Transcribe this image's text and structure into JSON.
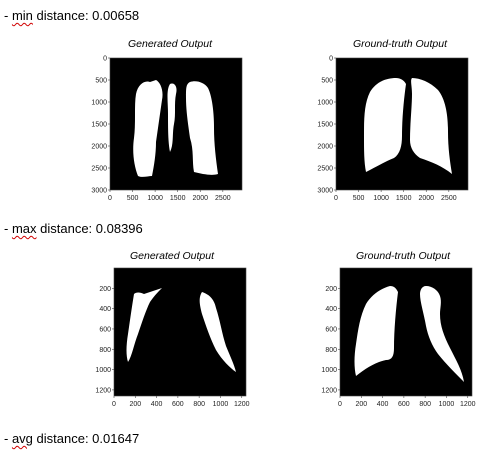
{
  "lines": {
    "min": {
      "prefix": "- ",
      "word": "min",
      "rest": " distance: 0.00658"
    },
    "max": {
      "prefix": "- ",
      "word": "max",
      "rest": " distance: 0.08396"
    },
    "avg": {
      "prefix": "- ",
      "word": "avg",
      "rest": " distance: 0.01647"
    }
  },
  "panels": [
    {
      "title": "Generated Output",
      "yticks": [
        "0",
        "500",
        "1000",
        "1500",
        "2000",
        "2500",
        "3000"
      ],
      "xticks": [
        "0",
        "500",
        "1000",
        "1500",
        "2000",
        "2500"
      ]
    },
    {
      "title": "Ground-truth Output",
      "yticks": [
        "0",
        "500",
        "1000",
        "1500",
        "2000",
        "2500",
        "3000"
      ],
      "xticks": [
        "0",
        "500",
        "1000",
        "1500",
        "2000",
        "2500"
      ]
    },
    {
      "title": "Generated Output",
      "yticks": [
        "200",
        "400",
        "600",
        "800",
        "1000",
        "1200"
      ],
      "xticks": [
        "0",
        "200",
        "400",
        "600",
        "800",
        "1000",
        "1200"
      ]
    },
    {
      "title": "Ground-truth Output",
      "yticks": [
        "200",
        "400",
        "600",
        "800",
        "1000",
        "1200"
      ],
      "xticks": [
        "0",
        "200",
        "400",
        "600",
        "800",
        "1000",
        "1200"
      ]
    }
  ],
  "colors": {
    "background": "#000000",
    "mask": "#ffffff",
    "spellcheck": "#d00000"
  }
}
